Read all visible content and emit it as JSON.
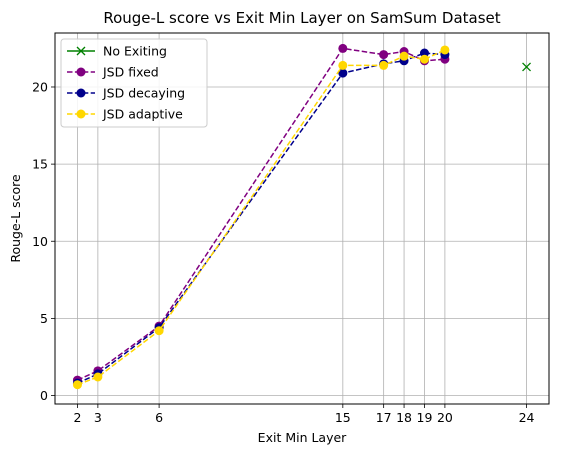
{
  "chart_data": {
    "type": "line",
    "title": "Rouge-L score vs Exit Min Layer on SamSum Dataset",
    "xlabel": "Exit Min Layer",
    "ylabel": "Rouge-L score",
    "xlim": [
      0.9,
      25.1
    ],
    "ylim": [
      -0.55,
      23.5
    ],
    "xticks": [
      2,
      3,
      6,
      15,
      17,
      18,
      19,
      20,
      24
    ],
    "yticks": [
      0,
      5,
      10,
      15,
      20
    ],
    "grid": true,
    "legend_position": "upper-left",
    "series": [
      {
        "name": "No Exiting",
        "color": "#008000",
        "marker": "x",
        "linestyle": "solid",
        "points": [
          [
            24,
            21.3
          ]
        ]
      },
      {
        "name": "JSD fixed",
        "color": "#800080",
        "marker": "o",
        "linestyle": "dashed",
        "points": [
          [
            2,
            1.0
          ],
          [
            3,
            1.6
          ],
          [
            6,
            4.5
          ],
          [
            15,
            22.5
          ],
          [
            17,
            22.1
          ],
          [
            18,
            22.3
          ],
          [
            19,
            21.7
          ],
          [
            20,
            21.8
          ]
        ]
      },
      {
        "name": "JSD decaying",
        "color": "#00008b",
        "marker": "o",
        "linestyle": "dashed",
        "points": [
          [
            2,
            0.8
          ],
          [
            3,
            1.4
          ],
          [
            6,
            4.4
          ],
          [
            15,
            20.9
          ],
          [
            17,
            21.5
          ],
          [
            18,
            21.7
          ],
          [
            19,
            22.2
          ],
          [
            20,
            22.1
          ]
        ]
      },
      {
        "name": "JSD adaptive",
        "color": "#ffd700",
        "marker": "o",
        "linestyle": "dashed",
        "points": [
          [
            2,
            0.7
          ],
          [
            3,
            1.2
          ],
          [
            6,
            4.2
          ],
          [
            15,
            21.4
          ],
          [
            17,
            21.4
          ],
          [
            18,
            22.0
          ],
          [
            19,
            21.8
          ],
          [
            20,
            22.4
          ]
        ]
      }
    ]
  }
}
